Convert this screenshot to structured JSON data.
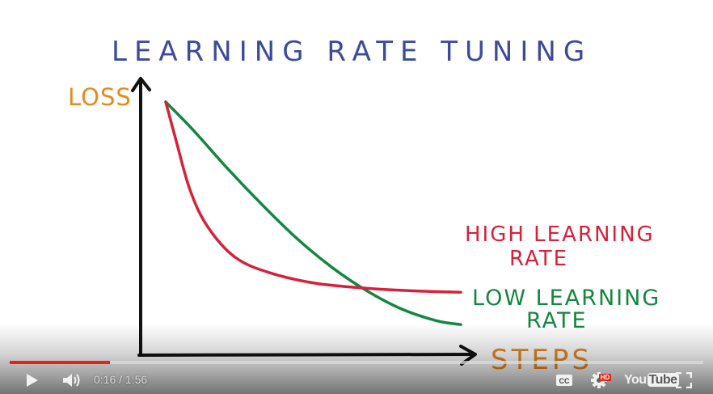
{
  "slide": {
    "title": "LEARNING RATE TUNING",
    "colors": {
      "title": "#3c4a9c",
      "axis_label": "#e58a1f",
      "high_lr": "#d7213a",
      "low_lr": "#13873f",
      "axis": "#111111"
    }
  },
  "chart_data": {
    "type": "line",
    "title": "LEARNING RATE TUNING",
    "xlabel": "STEPS",
    "ylabel": "LOSS",
    "grid": false,
    "legend": "inline-right",
    "xlim": [
      0,
      10
    ],
    "ylim": [
      0,
      10
    ],
    "series": [
      {
        "name": "HIGH LEARNING RATE",
        "name_lines": [
          "HIGH LEARNING",
          "RATE"
        ],
        "color": "#d7213a",
        "x": [
          0,
          0.3,
          0.7,
          1.2,
          2.0,
          3.0,
          4.3,
          5.8,
          7.2,
          8.5
        ],
        "y": [
          9.5,
          8.0,
          6.1,
          4.7,
          3.5,
          2.9,
          2.5,
          2.3,
          2.2,
          2.15
        ]
      },
      {
        "name": "LOW LEARNING RATE",
        "name_lines": [
          "LOW LEARNING",
          "RATE"
        ],
        "color": "#13873f",
        "x": [
          0,
          0.8,
          1.8,
          2.8,
          3.8,
          4.8,
          5.8,
          6.8,
          7.8,
          8.5
        ],
        "y": [
          9.5,
          8.4,
          6.9,
          5.5,
          4.2,
          3.1,
          2.2,
          1.5,
          1.05,
          0.9
        ]
      }
    ]
  },
  "player": {
    "current_time": "0:16",
    "separator": " / ",
    "duration": "1:56",
    "progress": 0.145,
    "hd_badge": "HD",
    "logo_you": "You",
    "logo_tube": "Tube",
    "icons": {
      "play": "play-icon",
      "volume": "volume-icon",
      "captions": "captions-icon",
      "settings": "settings-gear-icon",
      "fullscreen": "fullscreen-icon"
    }
  }
}
